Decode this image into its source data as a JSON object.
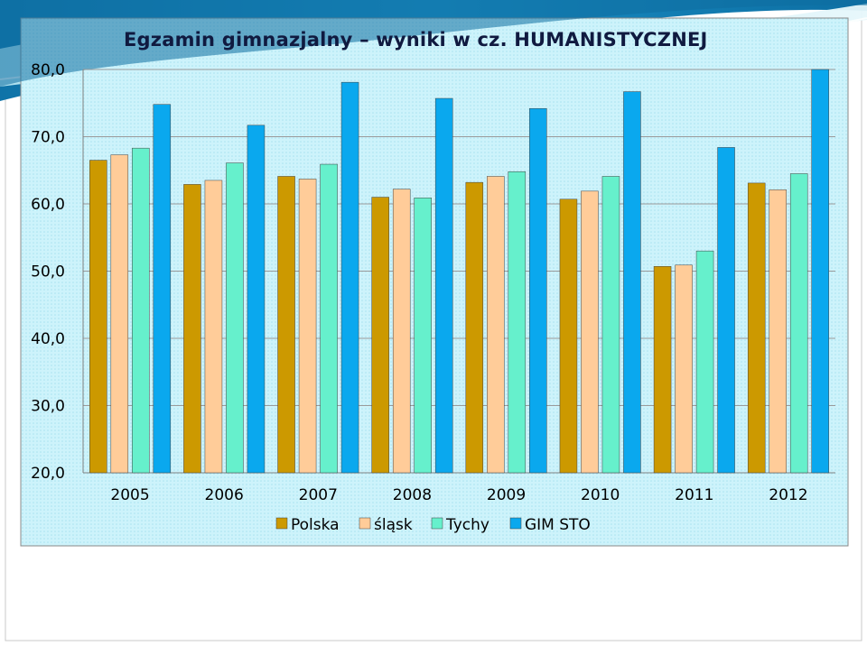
{
  "title": "Egzamin gimnazjalny – wyniki w cz. HUMANISTYCZNEJ",
  "chart_data": {
    "type": "bar",
    "title": "Egzamin gimnazjalny – wyniki w cz. HUMANISTYCZNEJ",
    "xlabel": "",
    "ylabel": "",
    "categories": [
      "2005",
      "2006",
      "2007",
      "2008",
      "2009",
      "2010",
      "2011",
      "2012"
    ],
    "ylim": [
      20,
      80
    ],
    "yticks": [
      "20,0",
      "30,0",
      "40,0",
      "50,0",
      "60,0",
      "70,0",
      "80,0"
    ],
    "grid": true,
    "legend_position": "bottom",
    "series": [
      {
        "name": "Polska",
        "color": "#cc9900",
        "values": [
          66.5,
          62.9,
          64.1,
          61.0,
          63.2,
          60.7,
          50.7,
          63.1
        ]
      },
      {
        "name": "śląsk",
        "color": "#ffcc99",
        "values": [
          67.3,
          63.5,
          63.7,
          62.2,
          64.1,
          61.9,
          50.9,
          62.1
        ]
      },
      {
        "name": "Tychy",
        "color": "#66f0cc",
        "values": [
          68.3,
          66.1,
          65.9,
          60.9,
          64.8,
          64.1,
          53.0,
          64.5
        ]
      },
      {
        "name": "GIM STO",
        "color": "#0aa8ee",
        "values": [
          74.8,
          71.7,
          78.1,
          75.7,
          74.2,
          76.7,
          68.4,
          80.1
        ]
      }
    ]
  }
}
